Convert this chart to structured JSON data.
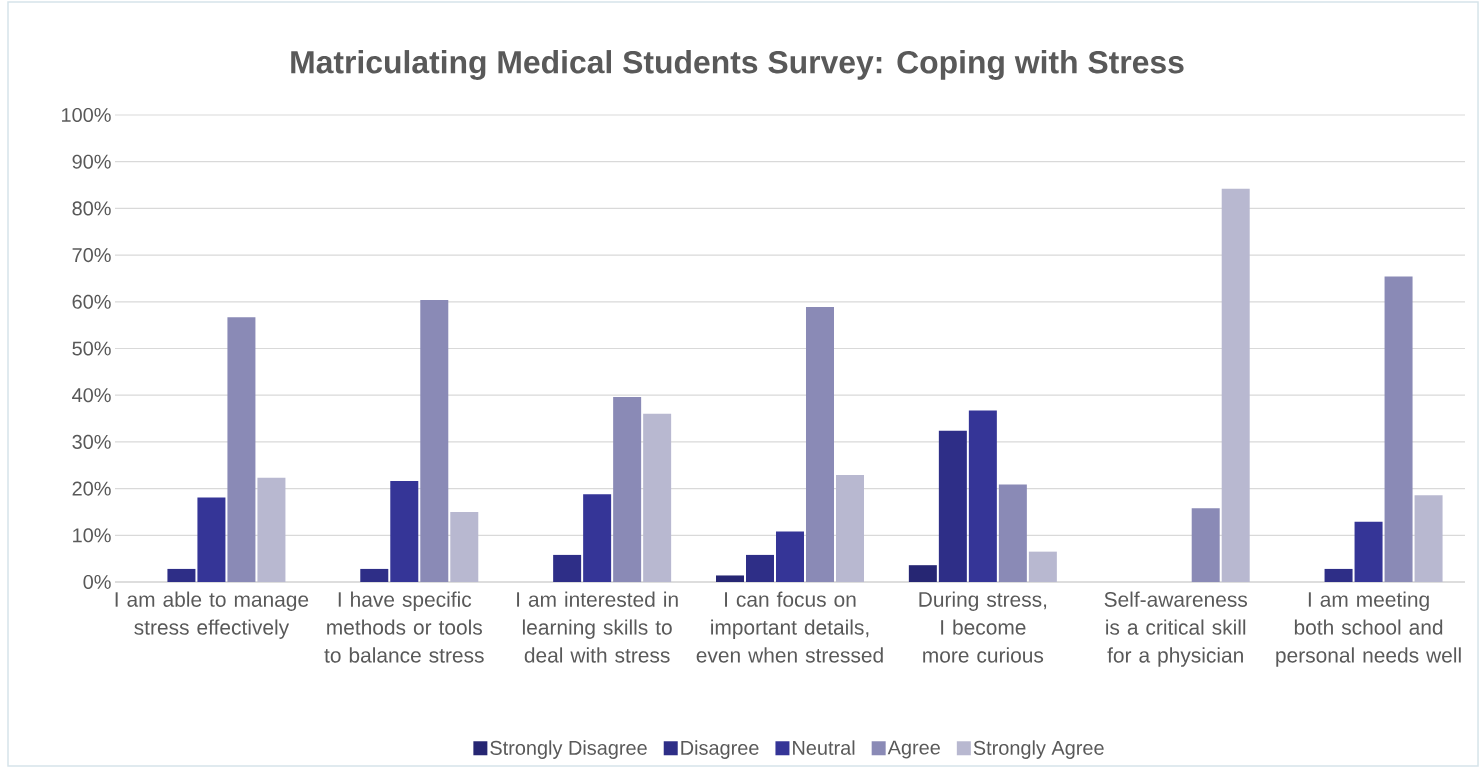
{
  "chart_data": {
    "type": "bar",
    "title": "Matriculating Medical Students Survey: Coping with Stress",
    "categories": [
      "I am able to manage stress effectively",
      "I have specific methods or tools to balance stress",
      "I am interested in learning skills to deal with stress",
      "I can focus on important details, even when stressed",
      "During stress, I become more curious",
      "Self-awareness is a critical skill for a physician",
      "I am meeting both school and personal needs well"
    ],
    "series": [
      {
        "name": "Strongly Disagree",
        "color": "#262673",
        "values": [
          0,
          0,
          0,
          1.4,
          3.6,
          0,
          0
        ]
      },
      {
        "name": "Disagree",
        "color": "#2e2e87",
        "values": [
          2.8,
          2.8,
          5.8,
          5.8,
          32.4,
          0,
          2.8
        ]
      },
      {
        "name": "Neutral",
        "color": "#353597",
        "values": [
          18.1,
          21.6,
          18.8,
          10.8,
          36.7,
          0,
          12.9
        ]
      },
      {
        "name": "Agree",
        "color": "#8a8ab6",
        "values": [
          56.7,
          60.4,
          39.6,
          58.9,
          20.9,
          15.8,
          65.4
        ]
      },
      {
        "name": "Strongly Agree",
        "color": "#b8b8d0",
        "values": [
          22.3,
          15.0,
          36.0,
          22.9,
          6.5,
          84.2,
          18.6
        ]
      }
    ],
    "ylim": [
      0,
      100
    ],
    "yticks": [
      {
        "value": 0,
        "label": "0%"
      },
      {
        "value": 10,
        "label": "10%"
      },
      {
        "value": 20,
        "label": "20%"
      },
      {
        "value": 30,
        "label": "30%"
      },
      {
        "value": 40,
        "label": "40%"
      },
      {
        "value": 50,
        "label": "50%"
      },
      {
        "value": 60,
        "label": "60%"
      },
      {
        "value": 70,
        "label": "70%"
      },
      {
        "value": 80,
        "label": "80%"
      },
      {
        "value": 90,
        "label": "90%"
      },
      {
        "value": 100,
        "label": "100%"
      }
    ],
    "grid": "y",
    "legend": "bottom"
  }
}
